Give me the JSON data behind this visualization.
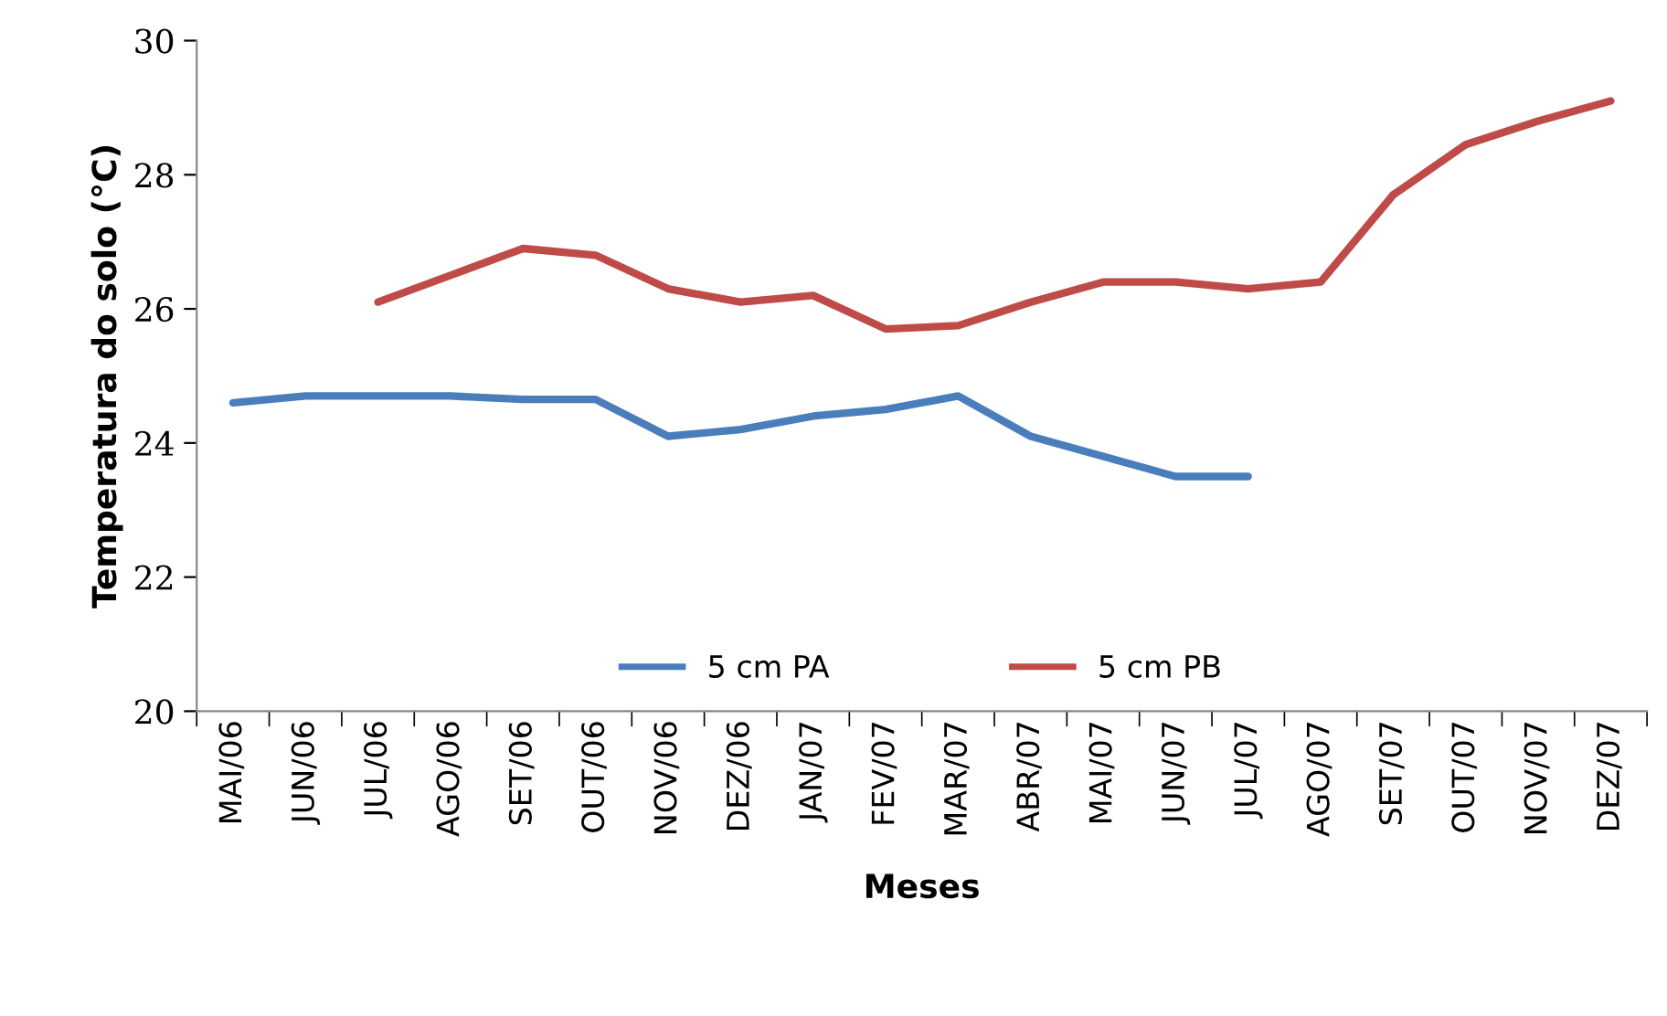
{
  "chart_data": {
    "type": "line",
    "xlabel": "Meses",
    "ylabel": "Temperatura do solo (°C)",
    "categories": [
      "MAI/06",
      "JUN/06",
      "JUL/06",
      "AGO/06",
      "SET/06",
      "OUT/06",
      "NOV/06",
      "DEZ/06",
      "JAN/07",
      "FEV/07",
      "MAR/07",
      "ABR/07",
      "MAI/07",
      "JUN/07",
      "JUL/07",
      "AGO/07",
      "SET/07",
      "OUT/07",
      "NOV/07",
      "DEZ/07"
    ],
    "series": [
      {
        "name": "5 cm PA",
        "color": "#4a7ebb",
        "values": [
          24.6,
          24.7,
          24.7,
          24.7,
          24.65,
          24.65,
          24.1,
          24.2,
          24.4,
          24.5,
          24.7,
          24.1,
          23.8,
          23.5,
          23.5,
          null,
          null,
          null,
          null,
          null
        ]
      },
      {
        "name": "5 cm PB",
        "color": "#be4b48",
        "values": [
          null,
          null,
          26.1,
          26.5,
          26.9,
          26.8,
          26.3,
          26.1,
          26.2,
          25.7,
          25.75,
          26.1,
          26.4,
          26.4,
          26.3,
          26.4,
          27.7,
          28.45,
          28.8,
          29.1
        ]
      }
    ],
    "ylim": [
      20,
      30
    ],
    "yticks": [
      20,
      22,
      24,
      26,
      28,
      30
    ],
    "grid": false,
    "legend": "bottom",
    "marker": "none",
    "line_style": "solid"
  }
}
